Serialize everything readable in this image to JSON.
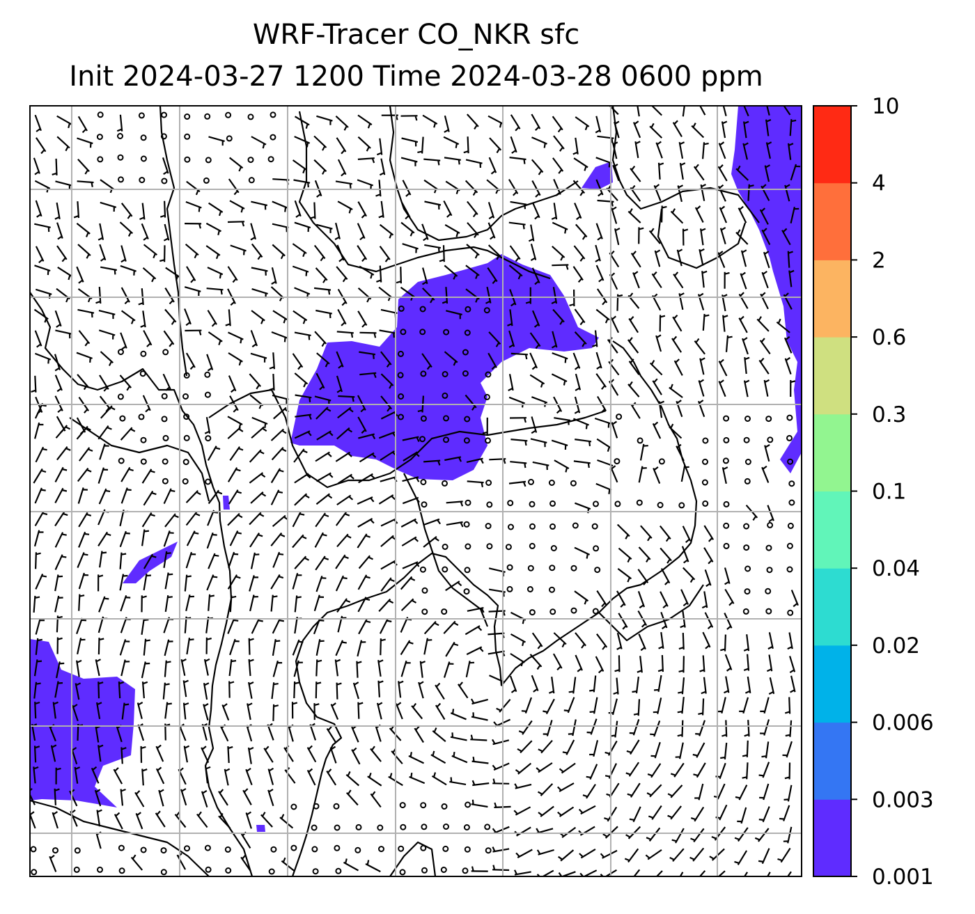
{
  "title": {
    "line1": "WRF-Tracer CO_NKR sfc",
    "line2": "Init 2024-03-27 1200 Time 2024-03-28 0600 ppm"
  },
  "map": {
    "field": "CO_NKR",
    "level": "sfc",
    "units": "ppm",
    "shaded_class": "0.001-0.003",
    "shaded_color": "#5f2cff",
    "barb_color": "#000000",
    "coastline_color": "#000000",
    "grid": true,
    "grid_color": "#b0b0b0"
  },
  "colorbar": {
    "ticks": [
      "0.001",
      "0.003",
      "0.006",
      "0.02",
      "0.04",
      "0.1",
      "0.3",
      "0.6",
      "2",
      "4",
      "10"
    ],
    "colors": [
      "#5f2cff",
      "#3476f3",
      "#00b2e9",
      "#2ddcd1",
      "#61f5b9",
      "#92f590",
      "#cfe080",
      "#fcb461",
      "#ff6f3b",
      "#ff2a14"
    ]
  }
}
